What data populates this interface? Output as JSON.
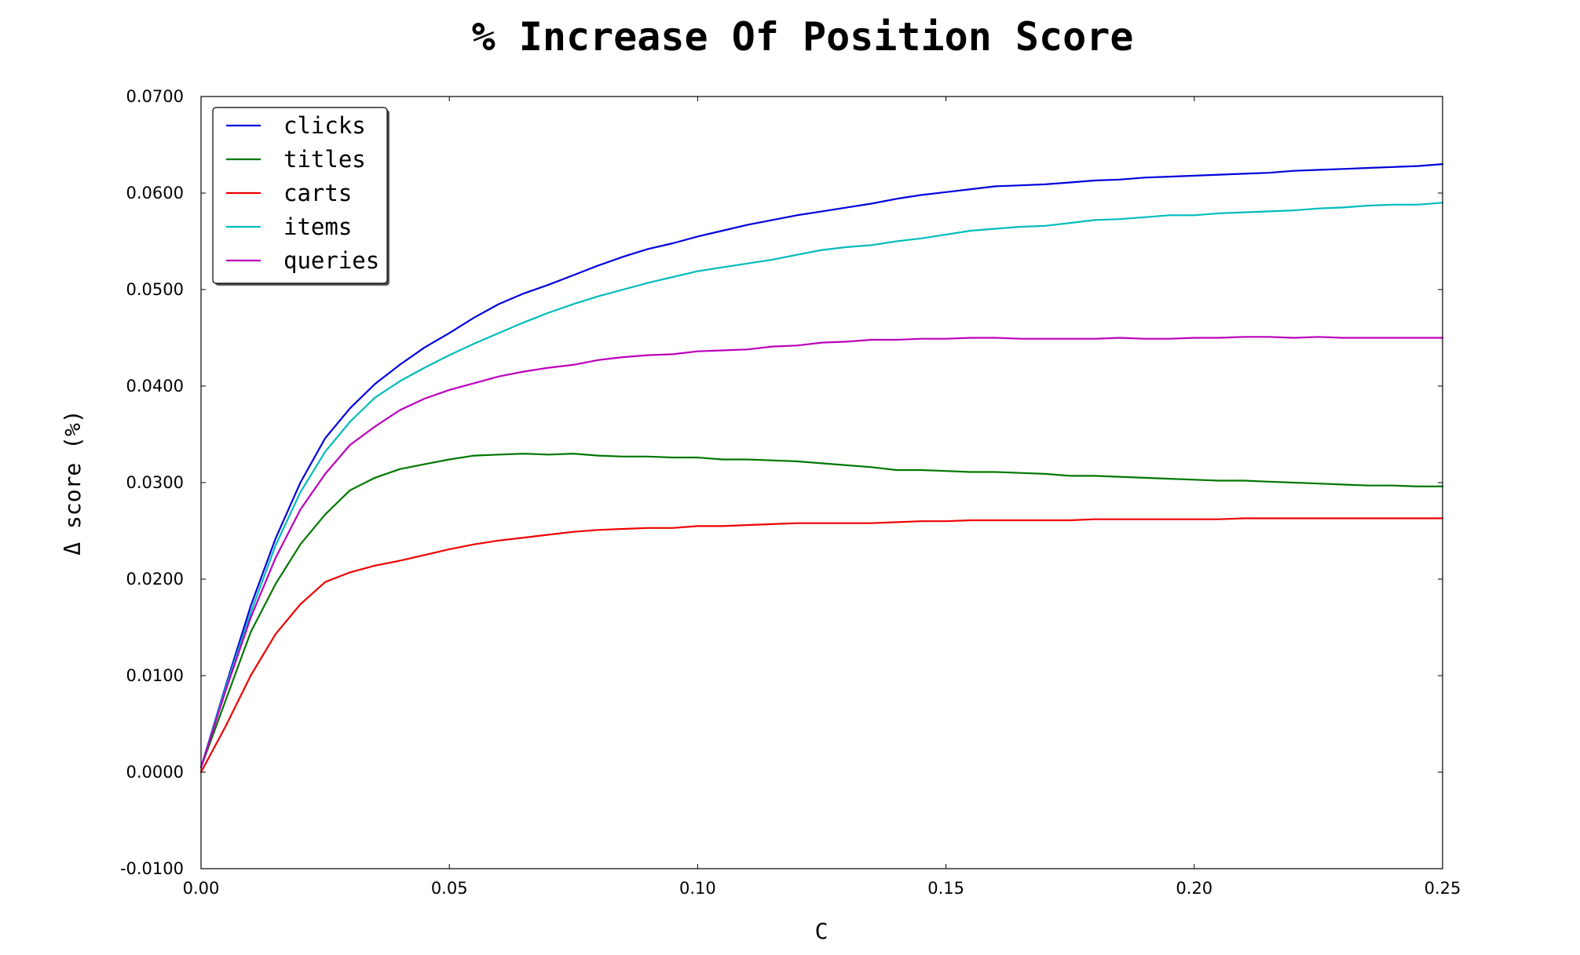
{
  "chart_data": {
    "type": "line",
    "title": "% Increase Of Position Score",
    "xlabel": "C",
    "ylabel": "Δ score (%)",
    "xlim": [
      0.0,
      0.25
    ],
    "ylim": [
      -0.01,
      0.07
    ],
    "grid": false,
    "legend_position": "top-left",
    "x_ticks": [
      {
        "value": 0.0,
        "label": "0.00"
      },
      {
        "value": 0.05,
        "label": "0.05"
      },
      {
        "value": 0.1,
        "label": "0.10"
      },
      {
        "value": 0.15,
        "label": "0.15"
      },
      {
        "value": 0.2,
        "label": "0.20"
      },
      {
        "value": 0.25,
        "label": "0.25"
      }
    ],
    "y_ticks": [
      {
        "value": -0.01,
        "label": "-0.0100"
      },
      {
        "value": 0.0,
        "label": "0.0000"
      },
      {
        "value": 0.01,
        "label": "0.0100"
      },
      {
        "value": 0.02,
        "label": "0.0200"
      },
      {
        "value": 0.03,
        "label": "0.0300"
      },
      {
        "value": 0.04,
        "label": "0.0400"
      },
      {
        "value": 0.05,
        "label": "0.0500"
      },
      {
        "value": 0.06,
        "label": "0.0600"
      },
      {
        "value": 0.07,
        "label": "0.0700"
      }
    ],
    "x": [
      0.0,
      0.005,
      0.01,
      0.015,
      0.02,
      0.025,
      0.03,
      0.035,
      0.04,
      0.045,
      0.05,
      0.055,
      0.06,
      0.065,
      0.07,
      0.075,
      0.08,
      0.085,
      0.09,
      0.095,
      0.1,
      0.105,
      0.11,
      0.115,
      0.12,
      0.125,
      0.13,
      0.135,
      0.14,
      0.145,
      0.15,
      0.155,
      0.16,
      0.165,
      0.17,
      0.175,
      0.18,
      0.185,
      0.19,
      0.195,
      0.2,
      0.205,
      0.21,
      0.215,
      0.22,
      0.225,
      0.23,
      0.235,
      0.24,
      0.245,
      0.25
    ],
    "series": [
      {
        "name": "clicks",
        "color": "#0000dd",
        "values": [
          0.0005,
          0.009,
          0.0172,
          0.0242,
          0.03,
          0.0346,
          0.0377,
          0.0402,
          0.0422,
          0.044,
          0.0455,
          0.0471,
          0.0485,
          0.0496,
          0.0505,
          0.0515,
          0.0525,
          0.0534,
          0.0542,
          0.0548,
          0.0555,
          0.0561,
          0.0567,
          0.0572,
          0.0577,
          0.0581,
          0.0585,
          0.0589,
          0.0594,
          0.0598,
          0.0601,
          0.0604,
          0.0607,
          0.0608,
          0.0609,
          0.0611,
          0.0613,
          0.0614,
          0.0616,
          0.0617,
          0.0618,
          0.0619,
          0.062,
          0.0621,
          0.0623,
          0.0624,
          0.0625,
          0.0626,
          0.0627,
          0.0628,
          0.063
        ]
      },
      {
        "name": "titles",
        "color": "#007700",
        "values": [
          0.0005,
          0.0075,
          0.0145,
          0.0195,
          0.0236,
          0.0267,
          0.0292,
          0.0305,
          0.0314,
          0.0319,
          0.0324,
          0.0328,
          0.0329,
          0.033,
          0.0329,
          0.033,
          0.0328,
          0.0327,
          0.0327,
          0.0326,
          0.0326,
          0.0324,
          0.0324,
          0.0323,
          0.0322,
          0.032,
          0.0318,
          0.0316,
          0.0313,
          0.0313,
          0.0312,
          0.0311,
          0.0311,
          0.031,
          0.0309,
          0.0307,
          0.0307,
          0.0306,
          0.0305,
          0.0304,
          0.0303,
          0.0302,
          0.0302,
          0.0301,
          0.03,
          0.0299,
          0.0298,
          0.0297,
          0.0297,
          0.0296,
          0.0296
        ]
      },
      {
        "name": "carts",
        "color": "#ee0000",
        "values": [
          0.0,
          0.0048,
          0.01,
          0.0143,
          0.0174,
          0.0197,
          0.0207,
          0.0214,
          0.0219,
          0.0225,
          0.0231,
          0.0236,
          0.024,
          0.0243,
          0.0246,
          0.0249,
          0.0251,
          0.0252,
          0.0253,
          0.0253,
          0.0255,
          0.0255,
          0.0256,
          0.0257,
          0.0258,
          0.0258,
          0.0258,
          0.0258,
          0.0259,
          0.026,
          0.026,
          0.0261,
          0.0261,
          0.0261,
          0.0261,
          0.0261,
          0.0262,
          0.0262,
          0.0262,
          0.0262,
          0.0262,
          0.0262,
          0.0263,
          0.0263,
          0.0263,
          0.0263,
          0.0263,
          0.0263,
          0.0263,
          0.0263,
          0.0263
        ]
      },
      {
        "name": "items",
        "color": "#00bbbb",
        "values": [
          0.0005,
          0.0088,
          0.0165,
          0.0235,
          0.029,
          0.0332,
          0.0363,
          0.0388,
          0.0405,
          0.0419,
          0.0432,
          0.0444,
          0.0455,
          0.0466,
          0.0476,
          0.0485,
          0.0493,
          0.05,
          0.0507,
          0.0513,
          0.0519,
          0.0523,
          0.0527,
          0.0531,
          0.0536,
          0.0541,
          0.0544,
          0.0546,
          0.055,
          0.0553,
          0.0557,
          0.0561,
          0.0563,
          0.0565,
          0.0566,
          0.0569,
          0.0572,
          0.0573,
          0.0575,
          0.0577,
          0.0577,
          0.0579,
          0.058,
          0.0581,
          0.0582,
          0.0584,
          0.0585,
          0.0587,
          0.0588,
          0.0588,
          0.059
        ]
      },
      {
        "name": "queries",
        "color": "#bb00bb",
        "values": [
          0.0005,
          0.0085,
          0.016,
          0.0222,
          0.0272,
          0.0309,
          0.0339,
          0.0358,
          0.0375,
          0.0387,
          0.0396,
          0.0403,
          0.041,
          0.0415,
          0.0419,
          0.0422,
          0.0427,
          0.043,
          0.0432,
          0.0433,
          0.0436,
          0.0437,
          0.0438,
          0.0441,
          0.0442,
          0.0445,
          0.0446,
          0.0448,
          0.0448,
          0.0449,
          0.0449,
          0.045,
          0.045,
          0.0449,
          0.0449,
          0.0449,
          0.0449,
          0.045,
          0.0449,
          0.0449,
          0.045,
          0.045,
          0.0451,
          0.0451,
          0.045,
          0.0451,
          0.045,
          0.045,
          0.045,
          0.045,
          0.045
        ]
      }
    ]
  }
}
